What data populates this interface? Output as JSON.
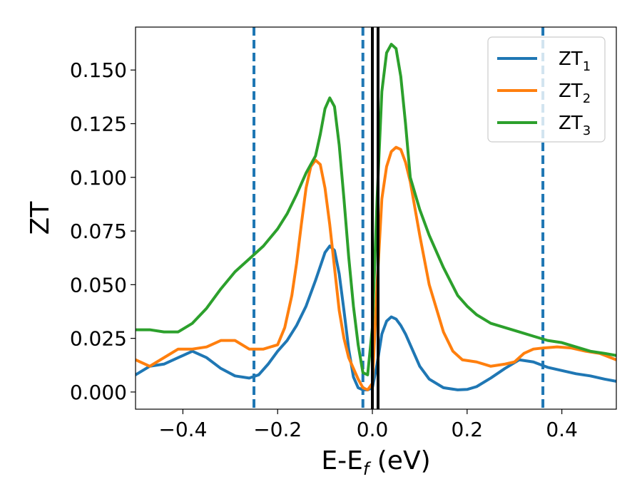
{
  "chart_data": {
    "type": "line",
    "xlabel": "E-E",
    "xlabel_sub": "f",
    "xlabel_unit": " (eV)",
    "ylabel": "ZT",
    "xlim": [
      -0.5,
      0.515
    ],
    "ylim": [
      -0.008,
      0.17
    ],
    "grid": false,
    "legend_position": "top-right",
    "xticks": [
      {
        "value": -0.4,
        "label": "−0.4"
      },
      {
        "value": -0.2,
        "label": "−0.2"
      },
      {
        "value": 0.0,
        "label": "0.0"
      },
      {
        "value": 0.2,
        "label": "0.2"
      },
      {
        "value": 0.4,
        "label": "0.4"
      }
    ],
    "yticks": [
      {
        "value": 0.0,
        "label": "0.000"
      },
      {
        "value": 0.025,
        "label": "0.025"
      },
      {
        "value": 0.05,
        "label": "0.050"
      },
      {
        "value": 0.075,
        "label": "0.075"
      },
      {
        "value": 0.1,
        "label": "0.100"
      },
      {
        "value": 0.125,
        "label": "0.125"
      },
      {
        "value": 0.15,
        "label": "0.150"
      }
    ],
    "dashed_vlines": [
      {
        "x": -0.25,
        "color": "#1f77b4"
      },
      {
        "x": -0.02,
        "color": "#1f77b4"
      },
      {
        "x": 0.36,
        "color": "#1f77b4"
      }
    ],
    "solid_vlines": [
      {
        "x": 0.0,
        "color": "#000000"
      },
      {
        "x": 0.012,
        "color": "#000000"
      }
    ],
    "series": [
      {
        "name": "ZT",
        "sub": "1",
        "color": "#1f77b4",
        "x": [
          -0.5,
          -0.47,
          -0.44,
          -0.41,
          -0.38,
          -0.35,
          -0.32,
          -0.29,
          -0.26,
          -0.24,
          -0.22,
          -0.2,
          -0.18,
          -0.16,
          -0.14,
          -0.12,
          -0.1,
          -0.09,
          -0.08,
          -0.07,
          -0.06,
          -0.05,
          -0.04,
          -0.03,
          -0.02,
          -0.01,
          0.0,
          0.01,
          0.02,
          0.03,
          0.04,
          0.05,
          0.06,
          0.07,
          0.08,
          0.1,
          0.12,
          0.15,
          0.18,
          0.2,
          0.22,
          0.25,
          0.28,
          0.31,
          0.34,
          0.37,
          0.4,
          0.43,
          0.46,
          0.49,
          0.515
        ],
        "y": [
          0.008,
          0.012,
          0.013,
          0.016,
          0.019,
          0.016,
          0.011,
          0.0075,
          0.0065,
          0.008,
          0.013,
          0.019,
          0.024,
          0.031,
          0.04,
          0.052,
          0.065,
          0.068,
          0.066,
          0.055,
          0.038,
          0.02,
          0.007,
          0.002,
          0.001,
          0.001,
          0.002,
          0.013,
          0.027,
          0.033,
          0.035,
          0.034,
          0.031,
          0.027,
          0.022,
          0.012,
          0.006,
          0.002,
          0.001,
          0.0012,
          0.0025,
          0.0065,
          0.011,
          0.015,
          0.014,
          0.0115,
          0.01,
          0.0085,
          0.0075,
          0.006,
          0.005
        ]
      },
      {
        "name": "ZT",
        "sub": "2",
        "color": "#ff7f0e",
        "x": [
          -0.5,
          -0.47,
          -0.44,
          -0.41,
          -0.38,
          -0.35,
          -0.32,
          -0.29,
          -0.26,
          -0.23,
          -0.2,
          -0.185,
          -0.17,
          -0.16,
          -0.15,
          -0.14,
          -0.13,
          -0.12,
          -0.11,
          -0.1,
          -0.09,
          -0.08,
          -0.07,
          -0.06,
          -0.05,
          -0.04,
          -0.03,
          -0.02,
          -0.01,
          0.0,
          0.01,
          0.02,
          0.03,
          0.04,
          0.05,
          0.06,
          0.07,
          0.08,
          0.1,
          0.12,
          0.15,
          0.17,
          0.19,
          0.22,
          0.25,
          0.28,
          0.3,
          0.32,
          0.34,
          0.36,
          0.39,
          0.42,
          0.45,
          0.48,
          0.515
        ],
        "y": [
          0.015,
          0.012,
          0.016,
          0.02,
          0.02,
          0.021,
          0.024,
          0.024,
          0.02,
          0.02,
          0.022,
          0.03,
          0.045,
          0.06,
          0.078,
          0.095,
          0.105,
          0.108,
          0.106,
          0.095,
          0.078,
          0.058,
          0.038,
          0.025,
          0.016,
          0.011,
          0.006,
          0.002,
          0.001,
          0.004,
          0.05,
          0.09,
          0.105,
          0.112,
          0.114,
          0.113,
          0.107,
          0.098,
          0.073,
          0.05,
          0.028,
          0.019,
          0.015,
          0.014,
          0.012,
          0.013,
          0.014,
          0.018,
          0.02,
          0.0205,
          0.021,
          0.0205,
          0.019,
          0.018,
          0.015
        ]
      },
      {
        "name": "ZT",
        "sub": "3",
        "color": "#2ca02c",
        "x": [
          -0.5,
          -0.47,
          -0.44,
          -0.41,
          -0.38,
          -0.35,
          -0.32,
          -0.29,
          -0.26,
          -0.23,
          -0.2,
          -0.18,
          -0.16,
          -0.14,
          -0.12,
          -0.11,
          -0.1,
          -0.09,
          -0.08,
          -0.07,
          -0.06,
          -0.05,
          -0.04,
          -0.03,
          -0.02,
          -0.01,
          0.0,
          0.01,
          0.02,
          0.03,
          0.04,
          0.05,
          0.06,
          0.07,
          0.08,
          0.1,
          0.12,
          0.15,
          0.18,
          0.2,
          0.22,
          0.25,
          0.28,
          0.31,
          0.34,
          0.37,
          0.4,
          0.43,
          0.46,
          0.49,
          0.515
        ],
        "y": [
          0.029,
          0.029,
          0.028,
          0.028,
          0.032,
          0.039,
          0.048,
          0.056,
          0.062,
          0.068,
          0.076,
          0.083,
          0.092,
          0.102,
          0.11,
          0.12,
          0.132,
          0.137,
          0.133,
          0.115,
          0.09,
          0.063,
          0.04,
          0.022,
          0.009,
          0.008,
          0.03,
          0.09,
          0.14,
          0.158,
          0.162,
          0.16,
          0.147,
          0.125,
          0.1,
          0.085,
          0.073,
          0.058,
          0.045,
          0.04,
          0.036,
          0.032,
          0.03,
          0.028,
          0.026,
          0.024,
          0.023,
          0.021,
          0.019,
          0.018,
          0.017
        ]
      }
    ]
  }
}
